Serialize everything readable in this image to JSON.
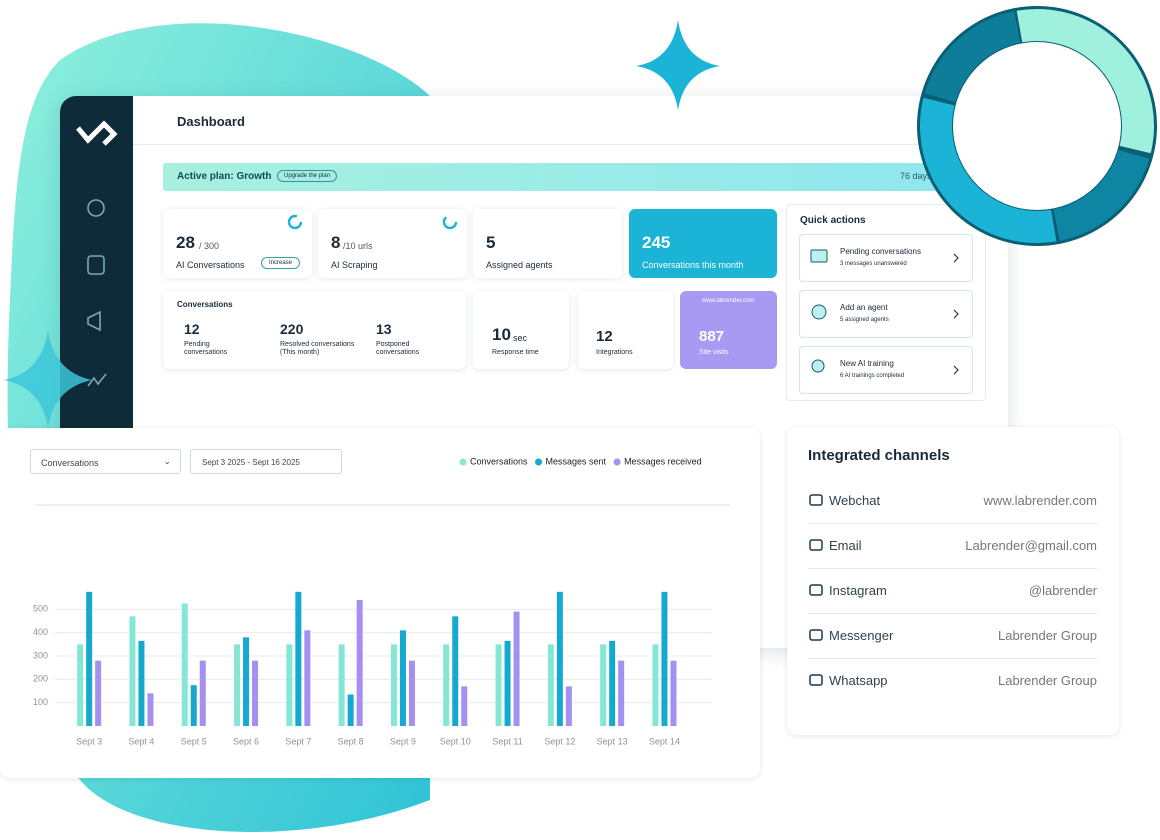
{
  "header": {
    "title": "Dashboard"
  },
  "plan": {
    "label": "Active plan: Growth",
    "button": "Upgrade the plan",
    "days": "76 days"
  },
  "stats": [
    {
      "value": 28,
      "unit": "/ 300",
      "label": "AI Conversations",
      "button": "Increase"
    },
    {
      "value": 8,
      "unit": "/10 urls",
      "label": "AI Scraping"
    },
    {
      "value": 5,
      "label": "Assigned agents"
    },
    {
      "value": 245,
      "label": "Conversations this month"
    }
  ],
  "conversations": {
    "title": "Conversations",
    "items": [
      {
        "value": 12,
        "label": "Pending conversations"
      },
      {
        "value": 220,
        "label": "Resolved conversations (This month)"
      },
      {
        "value": 13,
        "label": "Postponed conversations"
      }
    ]
  },
  "response": {
    "value": 10,
    "unit": "sec",
    "label": "Response time"
  },
  "integrations": {
    "value": 12,
    "label": "Integrations"
  },
  "site": {
    "url": "www.labrender.com",
    "value": 887,
    "label": "Site visits"
  },
  "quick_actions": {
    "title": "Quick actions",
    "items": [
      {
        "title": "Pending conversations",
        "subtitle": "3 messages unanswered"
      },
      {
        "title": "Add an agent",
        "subtitle": "5 assigned agents"
      },
      {
        "title": "New AI training",
        "subtitle": "6 AI trainings completed"
      }
    ]
  },
  "chart_controls": {
    "metric": "Conversations",
    "dates": "Sept 3 2025 - Sept 16 2025"
  },
  "chart_data": {
    "type": "bar",
    "categories": [
      "Sept 3",
      "Sept 4",
      "Sept 5",
      "Sept 6",
      "Sept 7",
      "Sept 8",
      "Sept 9",
      "Sept 10",
      "Sept 11",
      "Sept 12",
      "Sept 13",
      "Sept 14"
    ],
    "series": [
      {
        "name": "Conversations",
        "color": "#86e6d6",
        "values": [
          350,
          470,
          525,
          350,
          350,
          350,
          350,
          350,
          350,
          350,
          350,
          350
        ]
      },
      {
        "name": "Messages sent",
        "color": "#16a9d0",
        "values": [
          575,
          365,
          175,
          380,
          575,
          135,
          410,
          470,
          365,
          575,
          365,
          575
        ]
      },
      {
        "name": "Messages received",
        "color": "#a58ff0",
        "values": [
          280,
          140,
          280,
          280,
          410,
          540,
          280,
          170,
          490,
          170,
          280,
          280
        ]
      }
    ],
    "ylim": [
      0,
      900
    ],
    "yticks": [
      100,
      200,
      300,
      400,
      500
    ],
    "grid": true
  },
  "channels": {
    "title": "Integrated channels",
    "items": [
      {
        "name": "Webchat",
        "value": "www.labrender.com"
      },
      {
        "name": "Email",
        "value": "Labrender@gmail.com"
      },
      {
        "name": "Instagram",
        "value": "@labrender"
      },
      {
        "name": "Messenger",
        "value": "Labrender Group"
      },
      {
        "name": "Whatsapp",
        "value": "Labrender Group"
      }
    ]
  }
}
